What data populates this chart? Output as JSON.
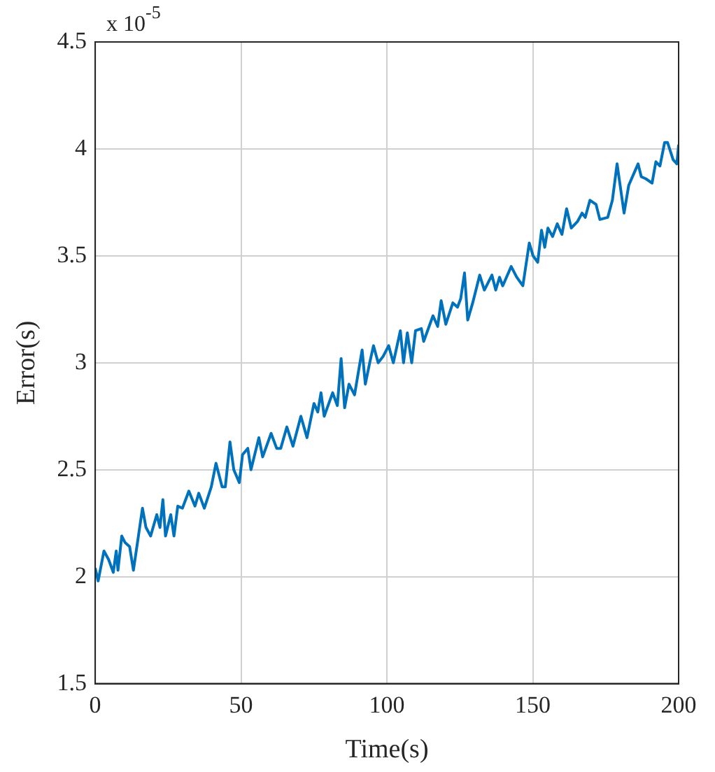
{
  "chart_data": {
    "type": "line",
    "xlabel": "Time(s)",
    "ylabel": "Error(s)",
    "annotations": [
      "x 10$^{-5}$"
    ],
    "xlim": [
      0,
      200
    ],
    "xticks": [
      0,
      50,
      100,
      150,
      200
    ],
    "ylim": [
      1.5,
      4.5
    ],
    "yticks": [
      1.5,
      2,
      2.5,
      3,
      3.5,
      4,
      4.5
    ],
    "grid": true,
    "marker": "none",
    "line_style": "solid",
    "series": [
      {
        "color": "#0072bd",
        "x": [
          0,
          1,
          3,
          4.6,
          6.2,
          7.2,
          7.8,
          9.1,
          10.2,
          11.8,
          13.1,
          16.2,
          17.4,
          19,
          21.1,
          22.2,
          23.2,
          24.1,
          25.9,
          27,
          28.3,
          29.9,
          32.1,
          34.2,
          35.5,
          37.4,
          39.8,
          41.4,
          43.5,
          44.6,
          46.2,
          47.5,
          49.4,
          50.5,
          52.3,
          53.4,
          56.1,
          57.4,
          60.3,
          62.2,
          63.6,
          65.7,
          67.8,
          70.5,
          72.6,
          75,
          76.3,
          77.4,
          78.5,
          81.4,
          83,
          84.3,
          85.5,
          87,
          88.9,
          91.5,
          92.6,
          94.1,
          95.4,
          97,
          98.7,
          100.6,
          102.2,
          104.6,
          105.7,
          107,
          108.5,
          109.8,
          111.8,
          112.6,
          115.8,
          117.4,
          118.6,
          120.2,
          122.6,
          124.2,
          125.3,
          126.6,
          127.7,
          129.4,
          131.8,
          133.4,
          136,
          137.3,
          138.6,
          139.7,
          142.6,
          144.5,
          146.6,
          148.8,
          150.1,
          151.7,
          153,
          154.1,
          155.2,
          156.8,
          158.4,
          160,
          161.6,
          163.2,
          165.3,
          166.9,
          168,
          169.6,
          171.7,
          173,
          175.7,
          177.3,
          178.9,
          181.3,
          182.9,
          184.5,
          186.1,
          187.2,
          188.8,
          190.9,
          192.2,
          193.6,
          195.2,
          196.2,
          198.1,
          199.4,
          200
        ],
        "values": [
          2.04,
          1.98,
          2.12,
          2.08,
          2.02,
          2.12,
          2.03,
          2.19,
          2.16,
          2.14,
          2.03,
          2.32,
          2.23,
          2.19,
          2.29,
          2.23,
          2.36,
          2.19,
          2.29,
          2.19,
          2.33,
          2.32,
          2.4,
          2.33,
          2.39,
          2.32,
          2.42,
          2.53,
          2.42,
          2.42,
          2.63,
          2.5,
          2.44,
          2.57,
          2.6,
          2.5,
          2.65,
          2.56,
          2.67,
          2.6,
          2.6,
          2.7,
          2.61,
          2.75,
          2.65,
          2.81,
          2.77,
          2.86,
          2.75,
          2.86,
          2.8,
          3.02,
          2.79,
          2.9,
          2.85,
          3.06,
          2.9,
          3,
          3.08,
          3,
          3.03,
          3.08,
          3,
          3.15,
          3,
          3.14,
          3,
          3.15,
          3.16,
          3.1,
          3.22,
          3.17,
          3.29,
          3.18,
          3.28,
          3.26,
          3.3,
          3.42,
          3.2,
          3.28,
          3.41,
          3.34,
          3.41,
          3.34,
          3.4,
          3.36,
          3.45,
          3.4,
          3.36,
          3.56,
          3.5,
          3.47,
          3.62,
          3.54,
          3.63,
          3.59,
          3.65,
          3.6,
          3.72,
          3.63,
          3.66,
          3.7,
          3.68,
          3.76,
          3.74,
          3.67,
          3.68,
          3.76,
          3.93,
          3.7,
          3.83,
          3.88,
          3.93,
          3.87,
          3.86,
          3.84,
          3.94,
          3.92,
          4.03,
          4.03,
          3.95,
          3.93,
          4.02
        ]
      }
    ]
  }
}
